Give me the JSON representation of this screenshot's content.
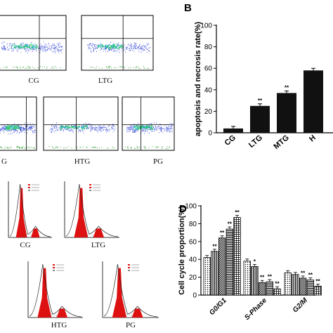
{
  "panels": {
    "a": {
      "plots": [
        {
          "label": "CG"
        },
        {
          "label": "LTG"
        },
        {
          "label": "G"
        },
        {
          "label": "HTG"
        },
        {
          "label": "PG"
        }
      ]
    },
    "b": {
      "letter": "B",
      "chart_data": {
        "type": "bar",
        "ylabel": "apoptosis and necrosis rate(%)",
        "ylim": [
          0,
          100
        ],
        "yticks": [
          "0",
          "20",
          "40",
          "60",
          "80",
          "100"
        ],
        "categories": [
          "CG",
          "LTG",
          "MTG",
          "H"
        ],
        "values": [
          4,
          25,
          37,
          58
        ],
        "significance": [
          "",
          "**",
          "**",
          ""
        ]
      }
    },
    "c": {
      "plots": [
        {
          "label": "CG"
        },
        {
          "label": "LTG"
        },
        {
          "label": "HTG"
        },
        {
          "label": "PG"
        }
      ]
    },
    "d": {
      "letter": "D",
      "chart_data": {
        "type": "bar",
        "ylabel": "Cell cycle proportion(%)",
        "ylim": [
          0,
          100
        ],
        "yticks": [
          "0",
          "20",
          "40",
          "60",
          "80",
          "100"
        ],
        "categories": [
          "G0/G1",
          "S-Phase",
          "G2/M"
        ],
        "series_count": 5,
        "values": [
          [
            42,
            49,
            64,
            74,
            87
          ],
          [
            38,
            32,
            14,
            15,
            7
          ],
          [
            25,
            23,
            19,
            17,
            10
          ]
        ],
        "significance": [
          [
            "",
            "**",
            "**",
            "**",
            "**"
          ],
          [
            "",
            "*",
            "**",
            "**",
            "**"
          ],
          [
            "",
            "",
            "**",
            "**",
            "**"
          ]
        ]
      }
    }
  }
}
